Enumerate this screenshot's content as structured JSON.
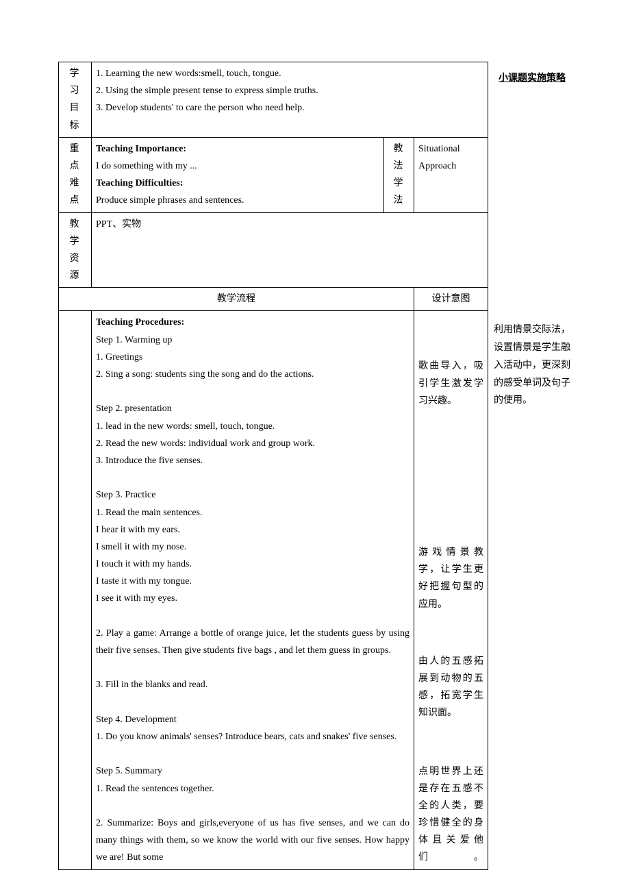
{
  "rows": {
    "objectives": {
      "label": "学习目标",
      "content": "1.  Learning the new words:smell, touch, tongue.\n2.  Using the simple present tense to express simple truths.\n3.  Develop students' to care the person who need help."
    },
    "keypoints": {
      "label": "重点难点",
      "importance_title": "Teaching Importance:",
      "importance_text": "I do something with my ...",
      "difficulties_title": "Teaching Difficulties:",
      "difficulties_text": "Produce simple phrases and sentences.",
      "method_label": "教法学法",
      "method_value": "Situational Approach"
    },
    "resources": {
      "label": "教学资源",
      "content": "PPT、实物"
    },
    "flow_header": "教学流程",
    "intent_header": "设计意图",
    "procedures": {
      "title": "Teaching Procedures:",
      "step1_title": "Step 1. Warming up",
      "step1_1": "1.  Greetings",
      "step1_2": "2.  Sing a song: students sing the song and do the actions.",
      "step2_title": "Step 2. presentation",
      "step2_1": "1.  lead in the new words: smell, touch, tongue.",
      "step2_2": "2.  Read the new words: individual work and group work.",
      "step2_3": "3.  Introduce the five senses.",
      "step3_title": "Step 3. Practice",
      "step3_1": "1.  Read the main sentences.",
      "step3_s1": "I hear it with my ears.",
      "step3_s2": "I smell it with my nose.",
      "step3_s3": "I touch it with my hands.",
      "step3_s4": "I taste it with my tongue.",
      "step3_s5": "I see it with my eyes.",
      "step3_2": "2. Play a game: Arrange a bottle of orange juice, let the students guess by using their five senses. Then give students five bags , and let them guess in groups.",
      "step3_3": "3.  Fill in the blanks and read.",
      "step4_title": "Step 4. Development",
      "step4_1": "1.  Do you know animals' senses? Introduce bears, cats and snakes' five senses.",
      "step5_title": "Step 5. Summary",
      "step5_1": "1.  Read the sentences together.",
      "step5_2": "2. Summarize: Boys and girls,everyone of us has five senses, and we can do many things with them, so we know the world with our five senses. How happy we are! But some"
    },
    "intents": {
      "i1": "歌曲导入，吸引学生激发学习兴趣。",
      "i2": "游戏情景教学，让学生更好把握句型的应用。",
      "i3": "由人的五感拓展到动物的五感，拓宽学生知识面。",
      "i4": "点明世界上还是存在五感不全的人类，要珍惜健全的身体且关爱他们。"
    }
  },
  "side": {
    "title": "小课题实施策略",
    "strategy": "利用情景交际法，设置情景是学生融入活动中，更深刻的感受单词及句子的使用。"
  },
  "style": {
    "text_color": "#000000",
    "bg_color": "#ffffff",
    "border_color": "#000000",
    "base_fontsize": 14,
    "line_height": 1.85
  }
}
